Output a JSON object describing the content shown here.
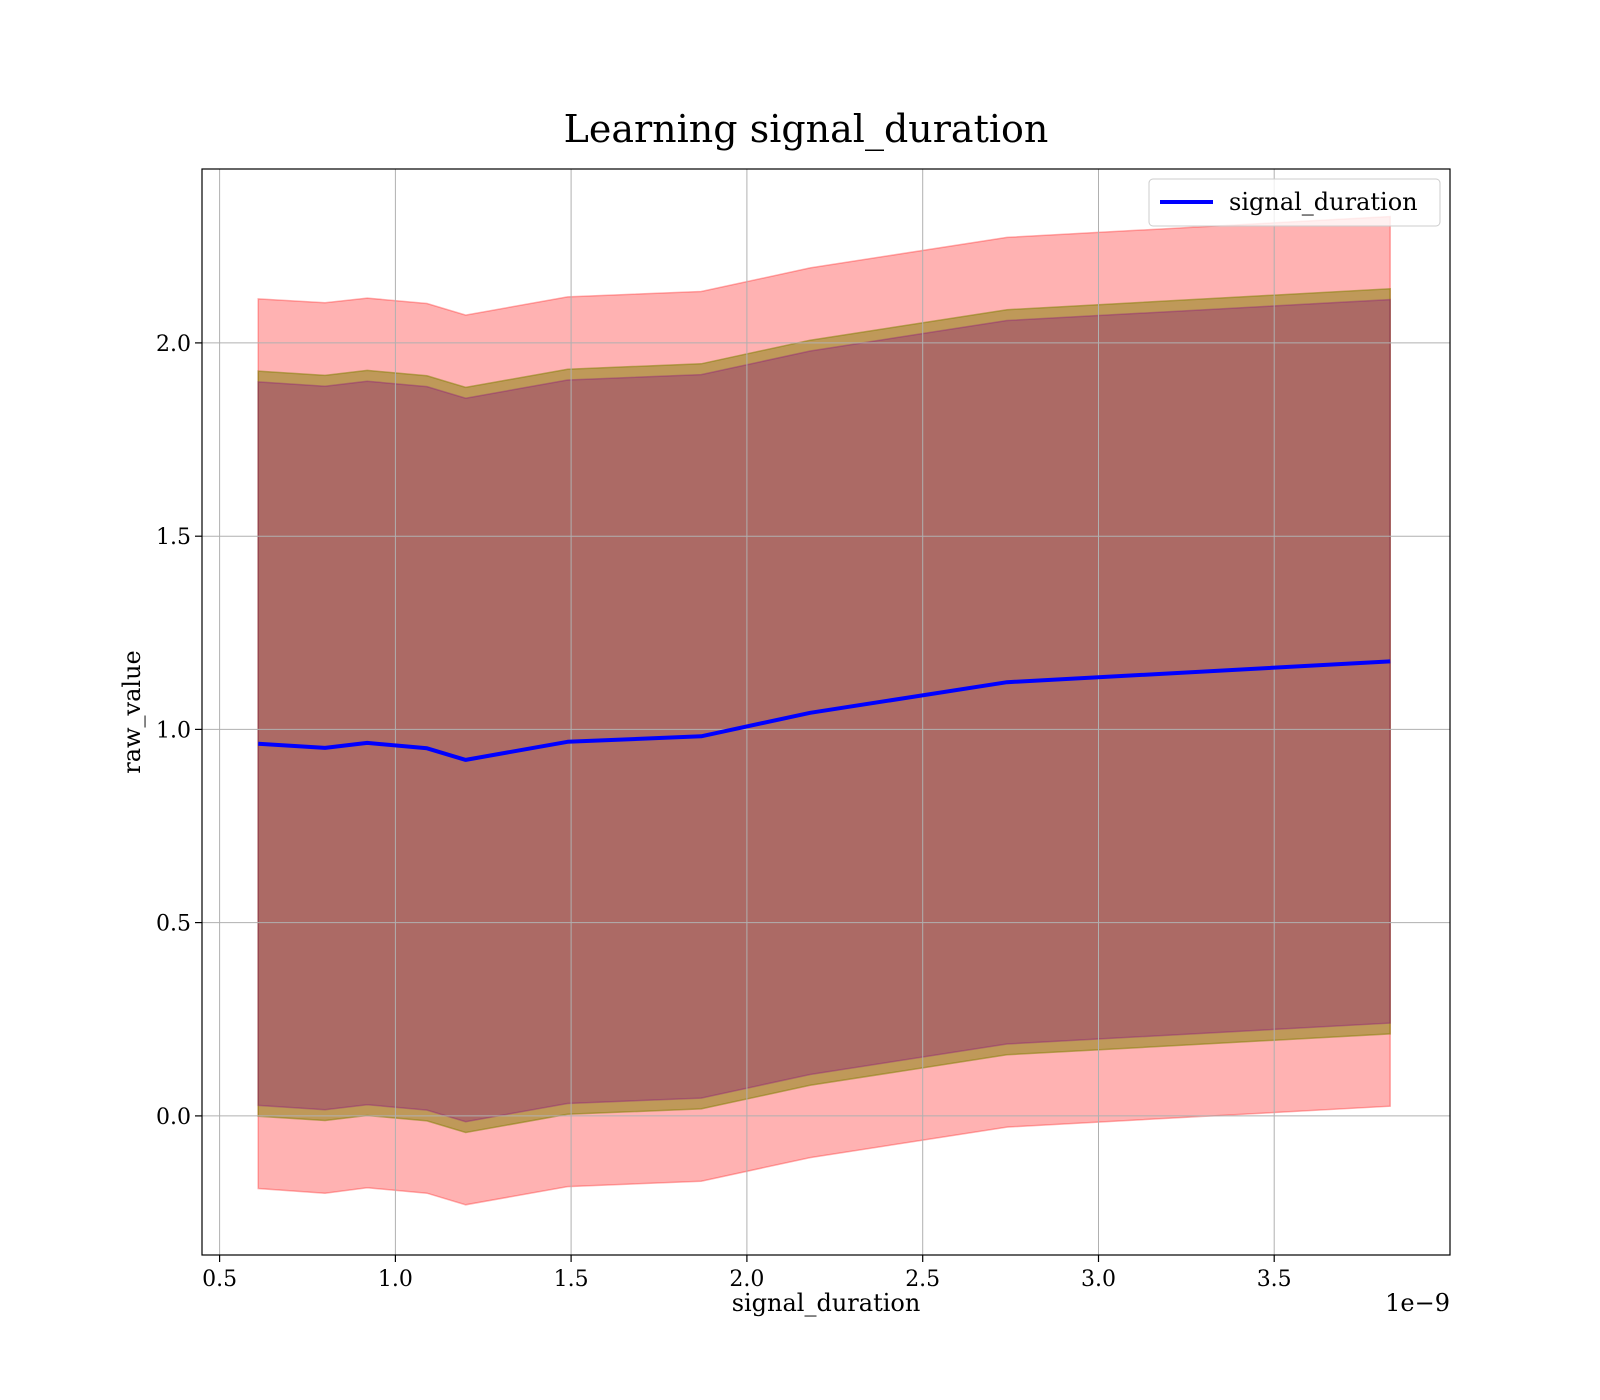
{
  "chart_data": {
    "type": "line",
    "title": "Learning signal_duration",
    "xlabel": "signal_duration",
    "ylabel": "raw_value",
    "x_offset_label": "1e−9",
    "x_scale": 1e-09,
    "xlim": [
      0.45,
      4.0
    ],
    "ylim": [
      -0.36,
      2.45
    ],
    "xticks": [
      0.5,
      1.0,
      1.5,
      2.0,
      2.5,
      3.0,
      3.5
    ],
    "xtick_labels": [
      "0.5",
      "1.0",
      "1.5",
      "2.0",
      "2.5",
      "3.0",
      "3.5"
    ],
    "yticks": [
      0.0,
      0.5,
      1.0,
      1.5,
      2.0
    ],
    "ytick_labels": [
      "0.0",
      "0.5",
      "1.0",
      "1.5",
      "2.0"
    ],
    "grid": true,
    "legend_placement": "top-right",
    "x": [
      0.61,
      0.8,
      0.92,
      1.09,
      1.2,
      1.49,
      1.87,
      2.18,
      2.74,
      3.83
    ],
    "series": [
      {
        "name": "signal_duration",
        "color": "#0000ff",
        "values": [
          0.963,
          0.952,
          0.965,
          0.951,
          0.921,
          0.968,
          0.982,
          1.043,
          1.122,
          1.176
        ]
      }
    ],
    "bands": [
      {
        "color": "#ff0000",
        "opacity": 0.3,
        "upper": [
          2.114,
          2.104,
          2.116,
          2.102,
          2.072,
          2.119,
          2.133,
          2.194,
          2.273,
          2.327
        ],
        "lower": [
          -0.188,
          -0.2,
          -0.186,
          -0.2,
          -0.23,
          -0.183,
          -0.169,
          -0.108,
          -0.029,
          0.025
        ]
      },
      {
        "color": "#808000",
        "opacity": 0.5,
        "upper": [
          1.927,
          1.916,
          1.929,
          1.915,
          1.885,
          1.932,
          1.946,
          2.007,
          2.086,
          2.14
        ],
        "lower": [
          -0.001,
          -0.012,
          0.001,
          -0.013,
          -0.043,
          0.004,
          0.018,
          0.079,
          0.158,
          0.212
        ]
      },
      {
        "color": "#800080",
        "opacity": 0.3,
        "upper": [
          1.899,
          1.888,
          1.901,
          1.887,
          1.857,
          1.904,
          1.918,
          1.979,
          2.058,
          2.112
        ],
        "lower": [
          0.027,
          0.016,
          0.029,
          0.015,
          -0.015,
          0.032,
          0.046,
          0.107,
          0.186,
          0.24
        ]
      }
    ]
  }
}
